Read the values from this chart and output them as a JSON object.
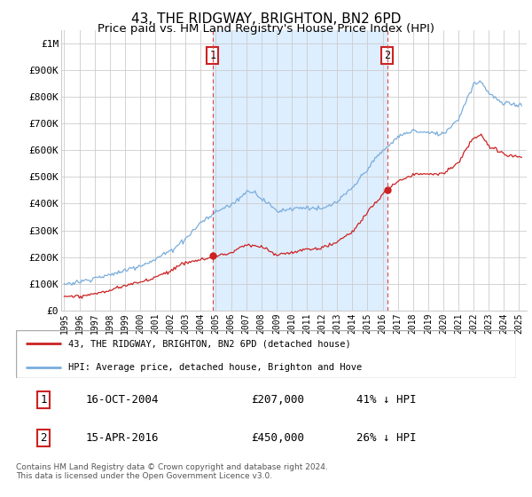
{
  "title": "43, THE RIDGWAY, BRIGHTON, BN2 6PD",
  "subtitle": "Price paid vs. HM Land Registry's House Price Index (HPI)",
  "ylabel_ticks": [
    "£0",
    "£100K",
    "£200K",
    "£300K",
    "£400K",
    "£500K",
    "£600K",
    "£700K",
    "£800K",
    "£900K",
    "£1M"
  ],
  "ylim": [
    0,
    1050000
  ],
  "yticks": [
    0,
    100000,
    200000,
    300000,
    400000,
    500000,
    600000,
    700000,
    800000,
    900000,
    1000000
  ],
  "xmin": 1994.8,
  "xmax": 2025.5,
  "marker1_x": 2004.79,
  "marker1_y": 207000,
  "marker2_x": 2016.29,
  "marker2_y": 450000,
  "red_line_color": "#cc2222",
  "blue_line_color": "#7aaddc",
  "shade_color": "#ddeeff",
  "marker_line_color": "#dd4444",
  "grid_color": "#cccccc",
  "background_color": "#ffffff",
  "legend_label_red": "43, THE RIDGWAY, BRIGHTON, BN2 6PD (detached house)",
  "legend_label_blue": "HPI: Average price, detached house, Brighton and Hove",
  "annotation1_num": "1",
  "annotation1_date": "16-OCT-2004",
  "annotation1_price": "£207,000",
  "annotation1_hpi": "41% ↓ HPI",
  "annotation2_num": "2",
  "annotation2_date": "15-APR-2016",
  "annotation2_price": "£450,000",
  "annotation2_hpi": "26% ↓ HPI",
  "footer": "Contains HM Land Registry data © Crown copyright and database right 2024.\nThis data is licensed under the Open Government Licence v3.0.",
  "title_fontsize": 11,
  "subtitle_fontsize": 9.5
}
